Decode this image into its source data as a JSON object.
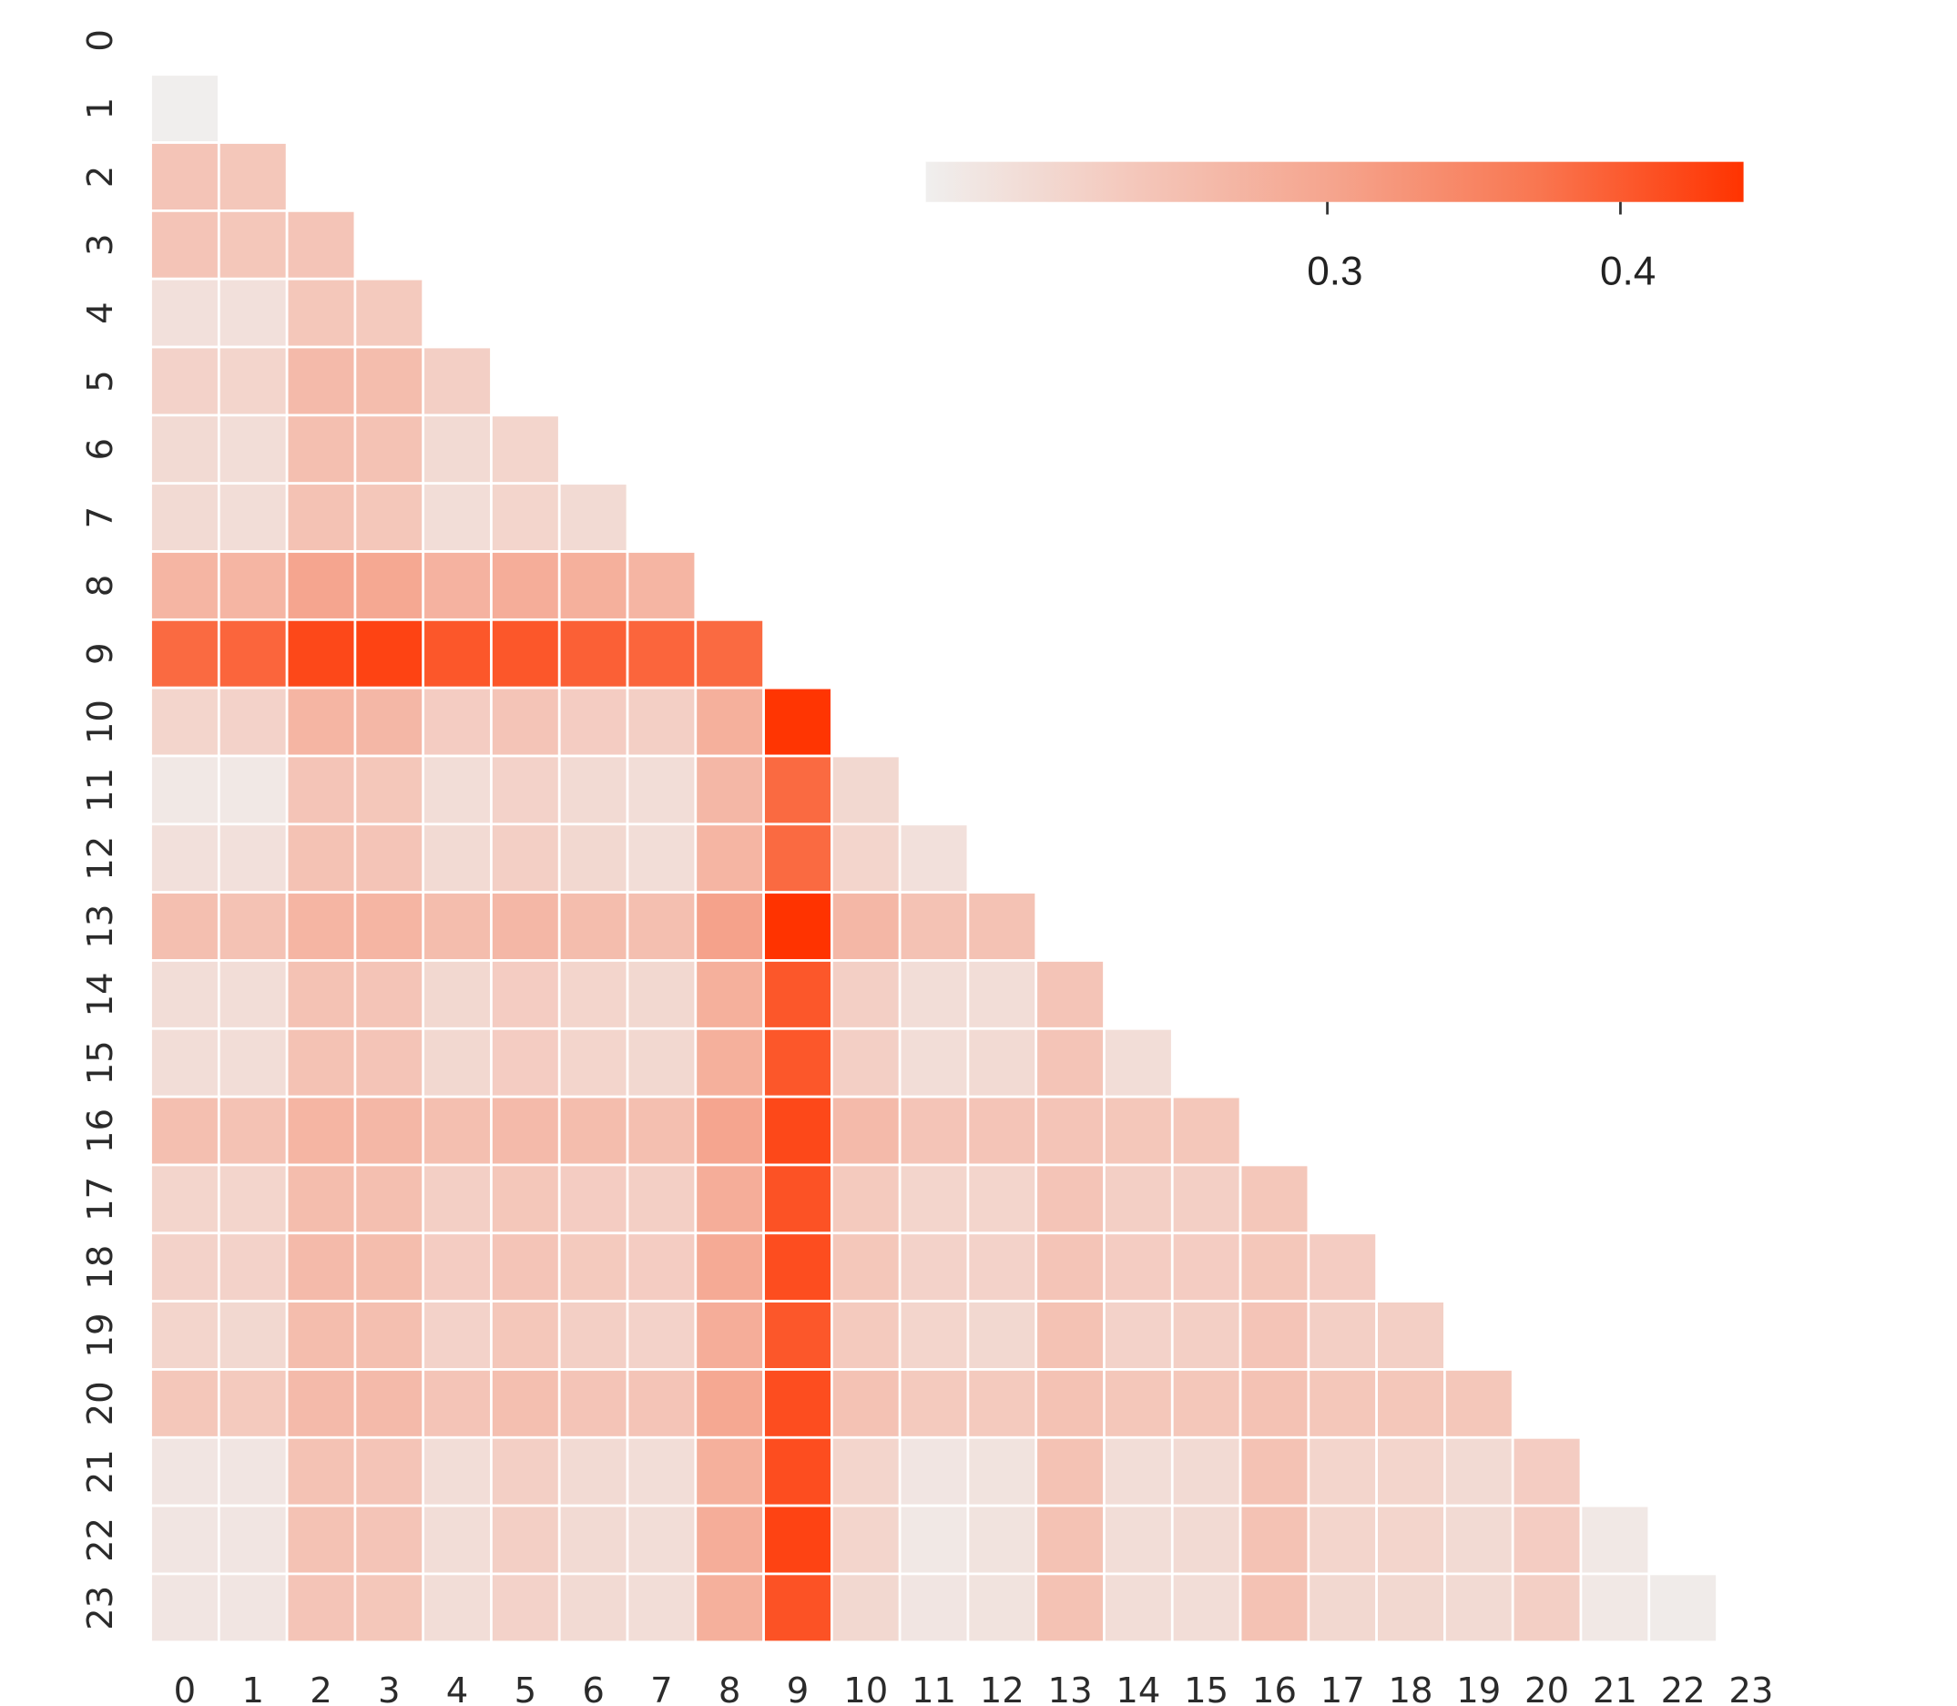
{
  "chart_data": {
    "type": "heatmap",
    "x_categories": [
      0,
      1,
      2,
      3,
      4,
      5,
      6,
      7,
      8,
      9,
      10,
      11,
      12,
      13,
      14,
      15,
      16,
      17,
      18,
      19,
      20,
      21,
      22,
      23
    ],
    "y_categories": [
      0,
      1,
      2,
      3,
      4,
      5,
      6,
      7,
      8,
      9,
      10,
      11,
      12,
      13,
      14,
      15,
      16,
      17,
      18,
      19,
      20,
      21,
      22,
      23
    ],
    "values": [
      [
        null,
        null,
        null,
        null,
        null,
        null,
        null,
        null,
        null,
        null,
        null,
        null,
        null,
        null,
        null,
        null,
        null,
        null,
        null,
        null,
        null,
        null,
        null,
        null
      ],
      [
        0.165,
        null,
        null,
        null,
        null,
        null,
        null,
        null,
        null,
        null,
        null,
        null,
        null,
        null,
        null,
        null,
        null,
        null,
        null,
        null,
        null,
        null,
        null,
        null
      ],
      [
        0.24,
        0.235,
        null,
        null,
        null,
        null,
        null,
        null,
        null,
        null,
        null,
        null,
        null,
        null,
        null,
        null,
        null,
        null,
        null,
        null,
        null,
        null,
        null,
        null
      ],
      [
        0.24,
        0.235,
        0.24,
        null,
        null,
        null,
        null,
        null,
        null,
        null,
        null,
        null,
        null,
        null,
        null,
        null,
        null,
        null,
        null,
        null,
        null,
        null,
        null,
        null
      ],
      [
        0.19,
        0.19,
        0.235,
        0.23,
        null,
        null,
        null,
        null,
        null,
        null,
        null,
        null,
        null,
        null,
        null,
        null,
        null,
        null,
        null,
        null,
        null,
        null,
        null,
        null
      ],
      [
        0.215,
        0.21,
        0.26,
        0.255,
        0.22,
        null,
        null,
        null,
        null,
        null,
        null,
        null,
        null,
        null,
        null,
        null,
        null,
        null,
        null,
        null,
        null,
        null,
        null,
        null
      ],
      [
        0.2,
        0.195,
        0.25,
        0.245,
        0.2,
        0.21,
        null,
        null,
        null,
        null,
        null,
        null,
        null,
        null,
        null,
        null,
        null,
        null,
        null,
        null,
        null,
        null,
        null,
        null
      ],
      [
        0.2,
        0.195,
        0.245,
        0.235,
        0.195,
        0.21,
        0.2,
        null,
        null,
        null,
        null,
        null,
        null,
        null,
        null,
        null,
        null,
        null,
        null,
        null,
        null,
        null,
        null,
        null
      ],
      [
        0.27,
        0.27,
        0.3,
        0.295,
        0.275,
        0.285,
        0.28,
        0.27,
        null,
        null,
        null,
        null,
        null,
        null,
        null,
        null,
        null,
        null,
        null,
        null,
        null,
        null,
        null,
        null
      ],
      [
        0.385,
        0.39,
        0.42,
        0.425,
        0.405,
        0.405,
        0.395,
        0.39,
        0.385,
        null,
        null,
        null,
        null,
        null,
        null,
        null,
        null,
        null,
        null,
        null,
        null,
        null,
        null,
        null
      ],
      [
        0.21,
        0.215,
        0.27,
        0.265,
        0.225,
        0.24,
        0.225,
        0.22,
        0.28,
        0.44,
        null,
        null,
        null,
        null,
        null,
        null,
        null,
        null,
        null,
        null,
        null,
        null,
        null,
        null
      ],
      [
        0.175,
        0.175,
        0.24,
        0.235,
        0.195,
        0.215,
        0.2,
        0.195,
        0.265,
        0.385,
        0.205,
        null,
        null,
        null,
        null,
        null,
        null,
        null,
        null,
        null,
        null,
        null,
        null,
        null
      ],
      [
        0.19,
        0.19,
        0.245,
        0.24,
        0.2,
        0.22,
        0.205,
        0.195,
        0.27,
        0.385,
        0.21,
        0.19,
        null,
        null,
        null,
        null,
        null,
        null,
        null,
        null,
        null,
        null,
        null,
        null
      ],
      [
        0.25,
        0.245,
        0.27,
        0.27,
        0.255,
        0.265,
        0.255,
        0.25,
        0.305,
        0.445,
        0.265,
        0.245,
        0.245,
        null,
        null,
        null,
        null,
        null,
        null,
        null,
        null,
        null,
        null,
        null
      ],
      [
        0.195,
        0.195,
        0.245,
        0.24,
        0.205,
        0.225,
        0.21,
        0.205,
        0.28,
        0.405,
        0.22,
        0.195,
        0.195,
        0.24,
        null,
        null,
        null,
        null,
        null,
        null,
        null,
        null,
        null,
        null
      ],
      [
        0.195,
        0.195,
        0.245,
        0.24,
        0.205,
        0.225,
        0.21,
        0.205,
        0.28,
        0.405,
        0.22,
        0.195,
        0.2,
        0.24,
        0.195,
        null,
        null,
        null,
        null,
        null,
        null,
        null,
        null,
        null
      ],
      [
        0.25,
        0.245,
        0.27,
        0.265,
        0.25,
        0.26,
        0.255,
        0.25,
        0.3,
        0.42,
        0.26,
        0.24,
        0.24,
        0.24,
        0.235,
        0.235,
        null,
        null,
        null,
        null,
        null,
        null,
        null,
        null
      ],
      [
        0.21,
        0.21,
        0.255,
        0.25,
        0.22,
        0.235,
        0.225,
        0.22,
        0.285,
        0.41,
        0.23,
        0.21,
        0.21,
        0.24,
        0.22,
        0.22,
        0.235,
        null,
        null,
        null,
        null,
        null,
        null,
        null
      ],
      [
        0.215,
        0.215,
        0.26,
        0.255,
        0.225,
        0.24,
        0.23,
        0.225,
        0.29,
        0.415,
        0.235,
        0.215,
        0.215,
        0.24,
        0.225,
        0.225,
        0.235,
        0.225,
        null,
        null,
        null,
        null,
        null,
        null
      ],
      [
        0.21,
        0.205,
        0.255,
        0.25,
        0.215,
        0.235,
        0.22,
        0.215,
        0.285,
        0.405,
        0.23,
        0.21,
        0.205,
        0.245,
        0.215,
        0.22,
        0.24,
        0.22,
        0.22,
        null,
        null,
        null,
        null,
        null
      ],
      [
        0.235,
        0.23,
        0.26,
        0.26,
        0.24,
        0.25,
        0.24,
        0.24,
        0.295,
        0.415,
        0.245,
        0.23,
        0.23,
        0.245,
        0.235,
        0.235,
        0.245,
        0.235,
        0.235,
        0.235,
        null,
        null,
        null,
        null
      ],
      [
        0.18,
        0.18,
        0.245,
        0.24,
        0.195,
        0.22,
        0.2,
        0.195,
        0.28,
        0.415,
        0.21,
        0.18,
        0.185,
        0.245,
        0.195,
        0.2,
        0.245,
        0.21,
        0.21,
        0.2,
        0.225,
        null,
        null,
        null
      ],
      [
        0.18,
        0.18,
        0.245,
        0.24,
        0.195,
        0.22,
        0.2,
        0.195,
        0.285,
        0.425,
        0.21,
        0.175,
        0.185,
        0.245,
        0.195,
        0.2,
        0.245,
        0.21,
        0.21,
        0.2,
        0.225,
        0.175,
        null,
        null
      ],
      [
        0.18,
        0.18,
        0.24,
        0.235,
        0.195,
        0.215,
        0.2,
        0.195,
        0.28,
        0.41,
        0.205,
        0.18,
        0.185,
        0.245,
        0.195,
        0.195,
        0.245,
        0.205,
        0.205,
        0.2,
        0.22,
        0.175,
        0.17,
        null
      ]
    ],
    "colormap": [
      "#f0efee",
      "#f4c8bc",
      "#f5a48d",
      "#f97650",
      "#ff3300"
    ],
    "clim": [
      0.163,
      0.442
    ],
    "colorbar_ticks": [
      0.3,
      0.4
    ]
  }
}
